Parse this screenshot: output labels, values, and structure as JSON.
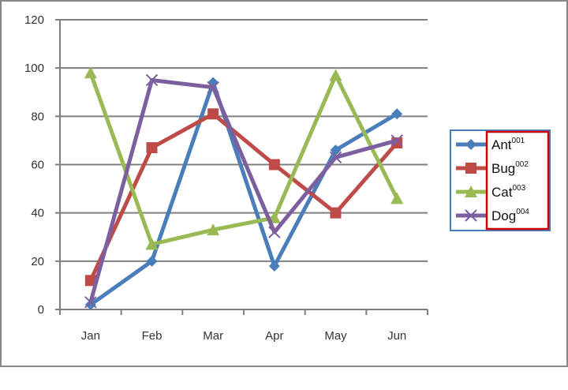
{
  "chart_data": {
    "type": "line",
    "categories": [
      "Jan",
      "Feb",
      "Mar",
      "Apr",
      "May",
      "Jun"
    ],
    "ylim": [
      0,
      120
    ],
    "yticks": [
      0,
      20,
      40,
      60,
      80,
      100,
      120
    ],
    "grid": true,
    "legend_position": "right",
    "title": "",
    "xlabel": "",
    "ylabel": "",
    "series": [
      {
        "name": "Ant",
        "sup": "001",
        "color": "#4a7ebb",
        "marker": "diamond",
        "values": [
          2,
          20,
          94,
          18,
          66,
          81
        ]
      },
      {
        "name": "Bug",
        "sup": "002",
        "color": "#be4b48",
        "marker": "square",
        "values": [
          12,
          67,
          81,
          60,
          40,
          69
        ]
      },
      {
        "name": "Cat",
        "sup": "003",
        "color": "#98b954",
        "marker": "triangle",
        "values": [
          98,
          27,
          33,
          38,
          97,
          46
        ]
      },
      {
        "name": "Dog",
        "sup": "004",
        "color": "#7d5fa0",
        "marker": "x",
        "values": [
          3,
          95,
          92,
          32,
          63,
          70
        ]
      }
    ]
  }
}
